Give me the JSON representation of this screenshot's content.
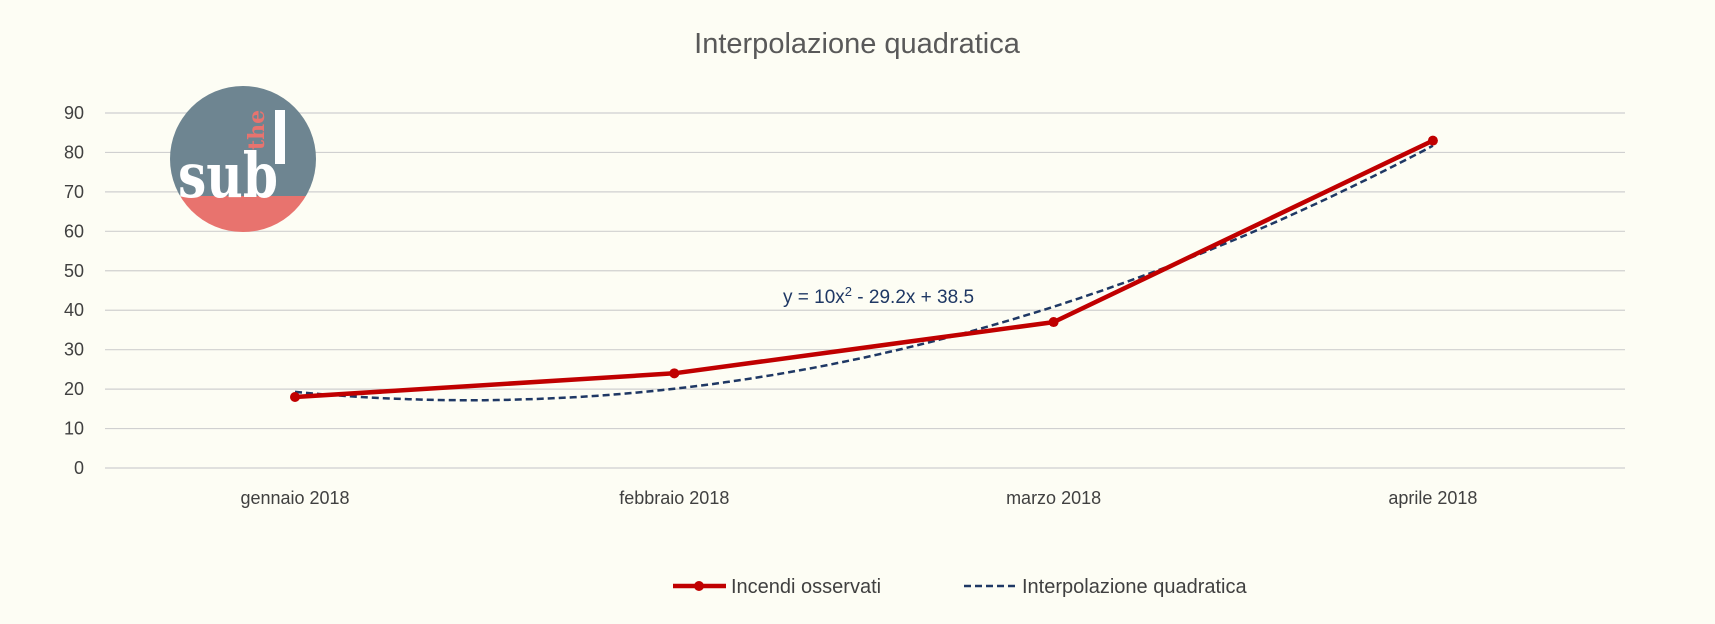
{
  "chart_data": {
    "type": "line",
    "title": "Interpolazione quadratica",
    "categories": [
      "gennaio 2018",
      "febbraio 2018",
      "marzo 2018",
      "aprile 2018"
    ],
    "y_ticks": [
      "0",
      "10",
      "20",
      "30",
      "40",
      "50",
      "60",
      "70",
      "80",
      "90"
    ],
    "ylim": [
      0,
      90
    ],
    "series": [
      {
        "name": "Incendi osservati",
        "values": [
          18,
          24,
          37,
          83
        ],
        "color": "#c00000",
        "style": "solid-markers"
      },
      {
        "name": "Interpolazione quadratica",
        "values": [
          19.3,
          20.1,
          40.9,
          81.7
        ],
        "color": "#1f3864",
        "style": "dashed"
      }
    ],
    "trendline_equation": {
      "prefix": "y = 10x",
      "exponent": "2",
      "suffix": " - 29.2x + 38.5",
      "coefficients": [
        10,
        -29.2,
        38.5
      ]
    },
    "legend_position": "bottom",
    "grid": true
  },
  "logo": {
    "small_text": "the",
    "big_text": "sub",
    "top_color": "#6e8591",
    "bottom_color": "#e8736e"
  }
}
